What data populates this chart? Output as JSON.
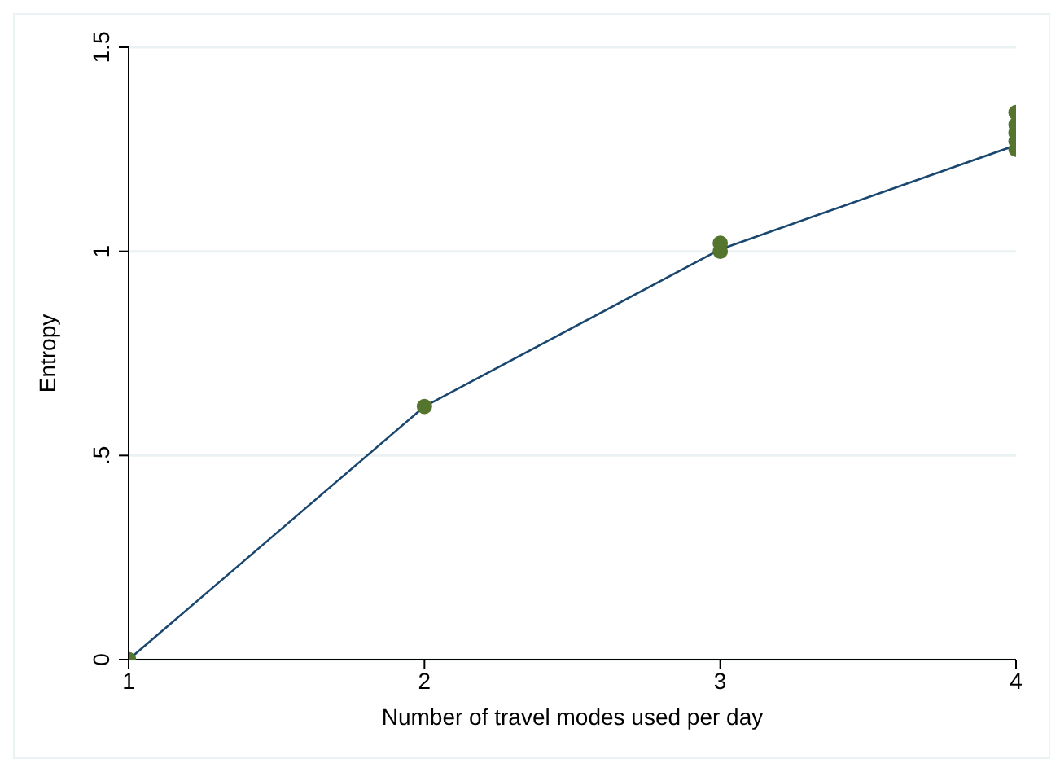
{
  "chart_data": {
    "type": "scatter",
    "xlabel": "Number of travel modes used per day",
    "ylabel": "Entropy",
    "xlim": [
      1,
      4
    ],
    "xticks": [
      1,
      2,
      3,
      4
    ],
    "ylim": [
      0,
      1.5
    ],
    "yticks": [
      {
        "value": 0,
        "label": "0"
      },
      {
        "value": 0.5,
        "label": ".5"
      },
      {
        "value": 1,
        "label": "1"
      },
      {
        "value": 1.5,
        "label": "1.5"
      }
    ],
    "grid": "y",
    "series": [
      {
        "type": "line",
        "color": "#1a476f",
        "x": [
          1,
          2,
          3,
          4
        ],
        "values": [
          0,
          0.62,
          1.005,
          1.26
        ]
      },
      {
        "marker": "circle",
        "color": "#55752f",
        "x": [
          1,
          2,
          3,
          3,
          4,
          4,
          4,
          4,
          4
        ],
        "values": [
          0,
          0.62,
          1.0,
          1.02,
          1.25,
          1.27,
          1.29,
          1.31,
          1.34
        ]
      }
    ]
  }
}
